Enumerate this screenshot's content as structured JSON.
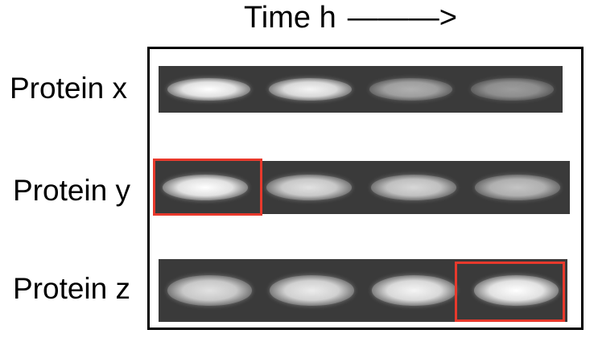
{
  "header": {
    "title": "Time h",
    "arrow": "———>"
  },
  "rows": [
    {
      "label": "Protein x",
      "bands": [
        1.0,
        0.95,
        0.6,
        0.5
      ]
    },
    {
      "label": "Protein y",
      "bands": [
        1.0,
        0.85,
        0.8,
        0.7
      ]
    },
    {
      "label": "Protein z",
      "bands": [
        0.85,
        0.9,
        0.95,
        1.0
      ]
    }
  ],
  "highlights": [
    {
      "row": 1,
      "lane": 0
    },
    {
      "row": 2,
      "lane": 3
    }
  ],
  "colors": {
    "gel": "#3a3a3a",
    "band": "#ffffff",
    "highlight": "#e8392c",
    "frame": "#000000"
  }
}
